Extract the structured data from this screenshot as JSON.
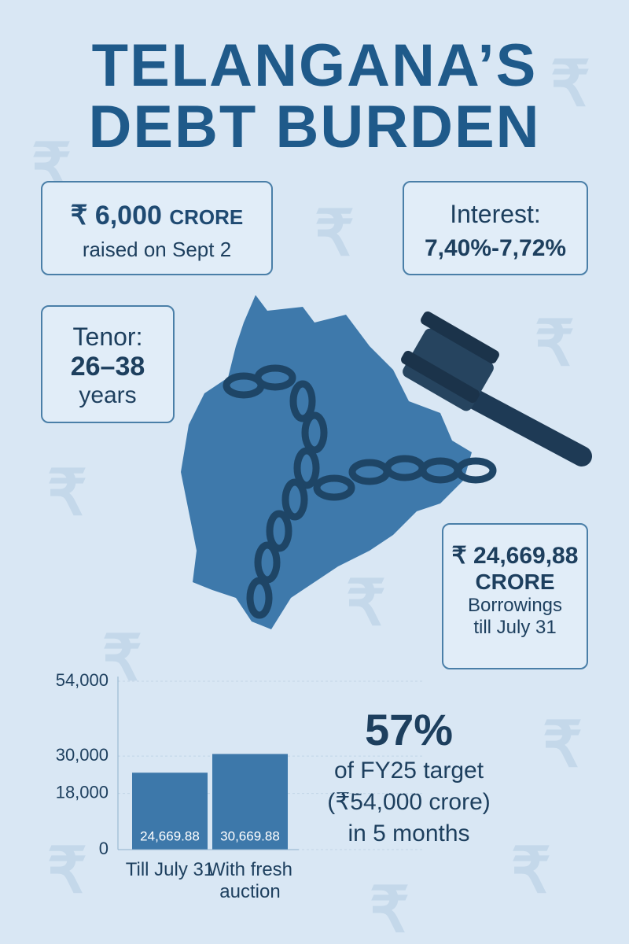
{
  "header": {
    "title": [
      "TELANGANA’S",
      "DEBT BURDEN"
    ]
  },
  "background_symbol": "₹",
  "cards": {
    "raised": {
      "amount": "₹ 6,000",
      "unit": "CRORE",
      "note": "raised on Sept 2"
    },
    "interest": {
      "label": "Interest:",
      "value": "7,40%-7,72%"
    },
    "tenor": {
      "label": "Tenor:",
      "value": "26–38",
      "unit": "years"
    },
    "borrowings": {
      "amount": "₹ 24,669,88",
      "unit": "CRORE",
      "note": [
        "Borrowings",
        "till July 31"
      ]
    }
  },
  "stat": {
    "value": "57%",
    "lines": [
      "of FY25 target",
      "(₹54,000 crore)",
      "in 5 months"
    ]
  },
  "chart_data": {
    "type": "bar",
    "categories": [
      "Till July 31",
      "With fresh auction"
    ],
    "values": [
      24669.88,
      30669.88
    ],
    "value_labels": [
      "24,669.88",
      "30,669.88"
    ],
    "color": "#3d78aa",
    "ylim": [
      0,
      54000
    ],
    "yticks": [
      0,
      {
        "value": 18000,
        "label": "18,000"
      },
      {
        "value": 30000,
        "label": "30,000"
      },
      {
        "value": 54000,
        "label": "54,000"
      }
    ]
  }
}
